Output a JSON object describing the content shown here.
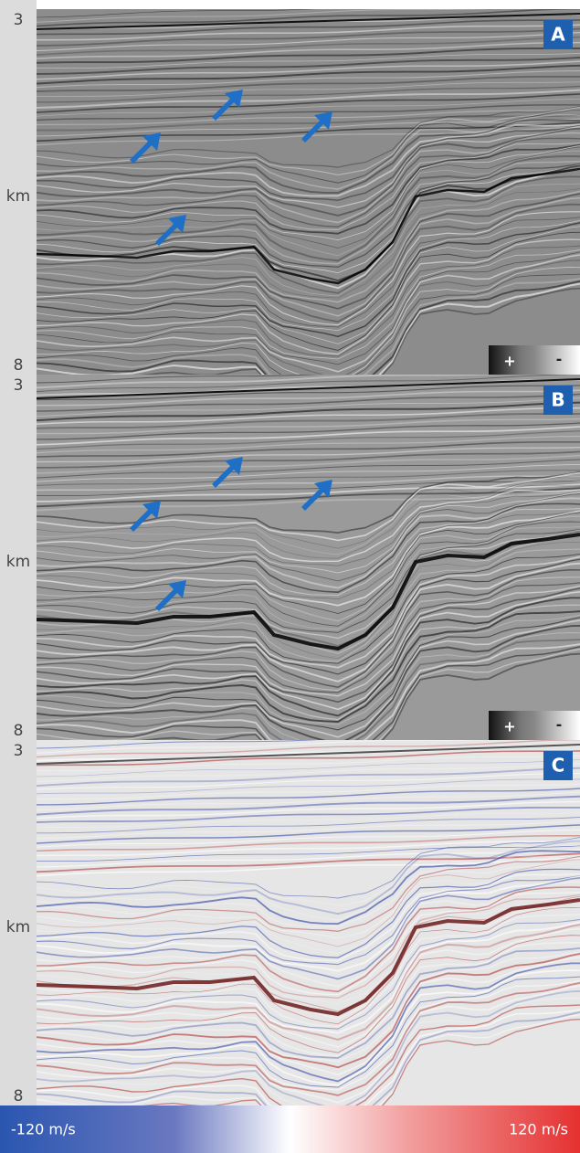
{
  "panels": [
    {
      "label": "A",
      "axis": {
        "top": "3",
        "unit": "km",
        "bottom": "8"
      },
      "legend": {
        "plus": "+",
        "minus": "-"
      }
    },
    {
      "label": "B",
      "axis": {
        "top": "3",
        "unit": "km",
        "bottom": "8"
      },
      "legend": {
        "plus": "+",
        "minus": "-"
      }
    },
    {
      "label": "C",
      "axis": {
        "top": "3",
        "unit": "km",
        "bottom": "8"
      }
    }
  ],
  "colorbar": {
    "min_label": "-120 m/s",
    "max_label": "120 m/s"
  }
}
